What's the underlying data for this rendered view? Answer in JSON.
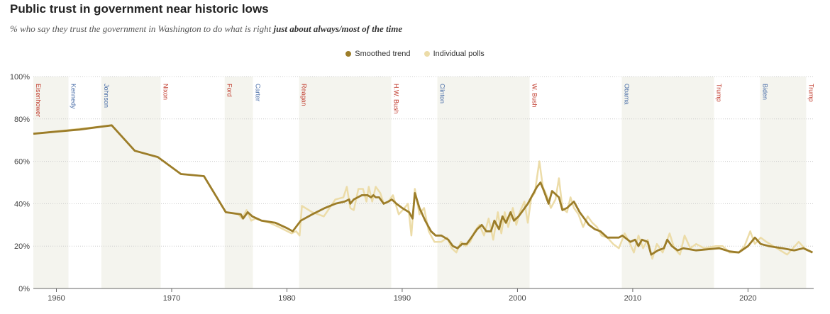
{
  "header": {
    "title": "Public trust in government near historic lows",
    "subtitle_main": "% who say they trust the government in Washington to do what is right ",
    "subtitle_emph": "just about always/most of the time"
  },
  "legend": {
    "smoothed_label": "Smoothed trend",
    "polls_label": "Individual polls"
  },
  "colors": {
    "smoothed": "#9c7d29",
    "polls": "#ecdca8",
    "shade": "#f4f4ee",
    "republican": "#c0392b",
    "democrat": "#4a6ea8",
    "axis": "#666666",
    "grid": "#cccccc"
  },
  "chart_data": {
    "type": "line",
    "title": "Public trust in government near historic lows",
    "xlabel": "",
    "ylabel": "",
    "xlim": [
      1958,
      2025.7
    ],
    "ylim": [
      0,
      100
    ],
    "x_ticks": [
      1960,
      1970,
      1980,
      1990,
      2000,
      2010,
      2020
    ],
    "y_ticks": [
      0,
      20,
      40,
      60,
      80,
      100
    ],
    "y_tick_labels": [
      "0%",
      "20%",
      "40%",
      "60%",
      "80%",
      "100%"
    ],
    "presidents": [
      {
        "name": "Eisenhower",
        "start": 1958,
        "end": 1961.05,
        "party": "R",
        "shaded": true
      },
      {
        "name": "Kennedy",
        "start": 1961.05,
        "end": 1963.9,
        "party": "D",
        "shaded": false
      },
      {
        "name": "Johnson",
        "start": 1963.9,
        "end": 1969.05,
        "party": "D",
        "shaded": true
      },
      {
        "name": "Nixon",
        "start": 1969.05,
        "end": 1974.6,
        "party": "R",
        "shaded": false
      },
      {
        "name": "Ford",
        "start": 1974.6,
        "end": 1977.05,
        "party": "R",
        "shaded": true
      },
      {
        "name": "Carter",
        "start": 1977.05,
        "end": 1981.05,
        "party": "D",
        "shaded": false
      },
      {
        "name": "Reagan",
        "start": 1981.05,
        "end": 1989.05,
        "party": "R",
        "shaded": true
      },
      {
        "name": "H.W. Bush",
        "start": 1989.05,
        "end": 1993.05,
        "party": "R",
        "shaded": false
      },
      {
        "name": "Clinton",
        "start": 1993.05,
        "end": 2001.05,
        "party": "D",
        "shaded": true
      },
      {
        "name": "W. Bush",
        "start": 2001.05,
        "end": 2009.05,
        "party": "R",
        "shaded": false
      },
      {
        "name": "Obama",
        "start": 2009.05,
        "end": 2017.05,
        "party": "D",
        "shaded": true
      },
      {
        "name": "Trump",
        "start": 2017.05,
        "end": 2021.05,
        "party": "R",
        "shaded": false
      },
      {
        "name": "Biden",
        "start": 2021.05,
        "end": 2025.05,
        "party": "D",
        "shaded": true
      },
      {
        "name": "Trump",
        "start": 2025.05,
        "end": 2025.7,
        "party": "R",
        "shaded": false
      }
    ],
    "series": [
      {
        "name": "Individual polls",
        "points": [
          [
            1958,
            73
          ],
          [
            1964.8,
            77
          ],
          [
            1966.8,
            65
          ],
          [
            1968.8,
            62
          ],
          [
            1970.8,
            54
          ],
          [
            1972.8,
            53
          ],
          [
            1974.7,
            36
          ],
          [
            1975.8,
            35
          ],
          [
            1976.1,
            33
          ],
          [
            1976.5,
            37
          ],
          [
            1976.9,
            32
          ],
          [
            1977.3,
            33
          ],
          [
            1977.8,
            32
          ],
          [
            1978.5,
            31
          ],
          [
            1979.3,
            29
          ],
          [
            1980.4,
            26
          ],
          [
            1980.8,
            27
          ],
          [
            1981.1,
            25
          ],
          [
            1981.3,
            39
          ],
          [
            1982.2,
            36
          ],
          [
            1983.2,
            34
          ],
          [
            1984.2,
            42
          ],
          [
            1984.9,
            43
          ],
          [
            1985.2,
            48
          ],
          [
            1985.5,
            38
          ],
          [
            1985.8,
            37
          ],
          [
            1986.2,
            47
          ],
          [
            1986.6,
            47
          ],
          [
            1986.9,
            41
          ],
          [
            1987.1,
            48
          ],
          [
            1987.4,
            41
          ],
          [
            1987.7,
            48
          ],
          [
            1988.1,
            45
          ],
          [
            1988.4,
            40
          ],
          [
            1988.8,
            41
          ],
          [
            1989.2,
            44
          ],
          [
            1989.7,
            35
          ],
          [
            1990.2,
            38
          ],
          [
            1990.5,
            40
          ],
          [
            1990.8,
            25
          ],
          [
            1991.1,
            47
          ],
          [
            1991.5,
            35
          ],
          [
            1991.9,
            38
          ],
          [
            1992.3,
            27
          ],
          [
            1992.8,
            22
          ],
          [
            1993.4,
            22
          ],
          [
            1993.9,
            24
          ],
          [
            1994.3,
            19
          ],
          [
            1994.7,
            17
          ],
          [
            1995.1,
            22
          ],
          [
            1995.5,
            20
          ],
          [
            1995.9,
            22
          ],
          [
            1996.3,
            27
          ],
          [
            1996.7,
            30
          ],
          [
            1997.1,
            25
          ],
          [
            1997.5,
            33
          ],
          [
            1997.9,
            23
          ],
          [
            1998.3,
            36
          ],
          [
            1998.6,
            26
          ],
          [
            1998.9,
            36
          ],
          [
            1999.2,
            29
          ],
          [
            1999.6,
            38
          ],
          [
            1999.9,
            30
          ],
          [
            2000.2,
            36
          ],
          [
            2000.6,
            41
          ],
          [
            2000.9,
            31
          ],
          [
            2001.2,
            43
          ],
          [
            2001.5,
            45
          ],
          [
            2001.9,
            60
          ],
          [
            2002.2,
            48
          ],
          [
            2002.6,
            43
          ],
          [
            2002.9,
            38
          ],
          [
            2003.3,
            42
          ],
          [
            2003.6,
            52
          ],
          [
            2003.9,
            38
          ],
          [
            2004.3,
            36
          ],
          [
            2004.6,
            43
          ],
          [
            2004.9,
            38
          ],
          [
            2005.3,
            35
          ],
          [
            2005.7,
            29
          ],
          [
            2006.1,
            34
          ],
          [
            2006.5,
            31
          ],
          [
            2006.9,
            29
          ],
          [
            2007.3,
            25
          ],
          [
            2007.8,
            24
          ],
          [
            2008.3,
            21
          ],
          [
            2008.8,
            19
          ],
          [
            2009.3,
            26
          ],
          [
            2009.7,
            22
          ],
          [
            2010.1,
            17
          ],
          [
            2010.5,
            25
          ],
          [
            2010.9,
            19
          ],
          [
            2011.3,
            23
          ],
          [
            2011.7,
            14
          ],
          [
            2012.1,
            21
          ],
          [
            2012.6,
            17
          ],
          [
            2013.2,
            26
          ],
          [
            2013.6,
            19
          ],
          [
            2014.1,
            16
          ],
          [
            2014.5,
            25
          ],
          [
            2015.0,
            19
          ],
          [
            2015.5,
            21
          ],
          [
            2016.2,
            19
          ],
          [
            2017.2,
            20
          ],
          [
            2017.8,
            20
          ],
          [
            2018.4,
            17
          ],
          [
            2019.2,
            17
          ],
          [
            2019.7,
            20
          ],
          [
            2020.2,
            27
          ],
          [
            2020.6,
            21
          ],
          [
            2021.1,
            24
          ],
          [
            2021.6,
            22
          ],
          [
            2022.2,
            20
          ],
          [
            2022.8,
            18
          ],
          [
            2023.4,
            16
          ],
          [
            2023.9,
            19
          ],
          [
            2024.4,
            22
          ],
          [
            2024.9,
            19
          ],
          [
            2025.6,
            17
          ]
        ]
      },
      {
        "name": "Smoothed trend",
        "points": [
          [
            1958,
            73
          ],
          [
            1960,
            74
          ],
          [
            1962,
            75
          ],
          [
            1964.8,
            77
          ],
          [
            1966.8,
            65
          ],
          [
            1968.8,
            62
          ],
          [
            1970.8,
            54
          ],
          [
            1972.8,
            53
          ],
          [
            1974.7,
            36
          ],
          [
            1976,
            35
          ],
          [
            1976.2,
            33
          ],
          [
            1976.6,
            36
          ],
          [
            1977,
            34
          ],
          [
            1977.8,
            32
          ],
          [
            1979,
            31
          ],
          [
            1980,
            28.5
          ],
          [
            1980.5,
            27
          ],
          [
            1981.2,
            32
          ],
          [
            1982.2,
            35
          ],
          [
            1983.3,
            38
          ],
          [
            1984.2,
            40
          ],
          [
            1985.0,
            41
          ],
          [
            1985.4,
            42
          ],
          [
            1985.5,
            40
          ],
          [
            1985.8,
            42
          ],
          [
            1986.5,
            44
          ],
          [
            1987.0,
            44
          ],
          [
            1987.3,
            43
          ],
          [
            1987.5,
            44
          ],
          [
            1987.7,
            43
          ],
          [
            1988,
            43
          ],
          [
            1988.4,
            40
          ],
          [
            1988.8,
            41
          ],
          [
            1989.1,
            42
          ],
          [
            1989.5,
            40
          ],
          [
            1990,
            38
          ],
          [
            1990.6,
            36
          ],
          [
            1990.9,
            33
          ],
          [
            1991.1,
            45
          ],
          [
            1991.5,
            38
          ],
          [
            1992.0,
            32
          ],
          [
            1992.5,
            27
          ],
          [
            1992.9,
            25
          ],
          [
            1993.4,
            25
          ],
          [
            1994.0,
            23
          ],
          [
            1994.4,
            20
          ],
          [
            1994.8,
            19
          ],
          [
            1995.2,
            21
          ],
          [
            1995.6,
            21
          ],
          [
            1996.0,
            24
          ],
          [
            1996.5,
            28
          ],
          [
            1996.9,
            30
          ],
          [
            1997.3,
            27
          ],
          [
            1997.7,
            27
          ],
          [
            1998.0,
            32
          ],
          [
            1998.4,
            28
          ],
          [
            1998.7,
            34
          ],
          [
            1999.0,
            31
          ],
          [
            1999.4,
            36
          ],
          [
            1999.7,
            32
          ],
          [
            2000.1,
            34
          ],
          [
            2000.5,
            37
          ],
          [
            2000.9,
            40
          ],
          [
            2001.3,
            44
          ],
          [
            2001.7,
            48
          ],
          [
            2002.0,
            50
          ],
          [
            2002.3,
            46
          ],
          [
            2002.7,
            40
          ],
          [
            2003.0,
            46
          ],
          [
            2003.6,
            43
          ],
          [
            2003.9,
            37
          ],
          [
            2004.3,
            38
          ],
          [
            2004.9,
            41
          ],
          [
            2005.4,
            36
          ],
          [
            2005.8,
            33
          ],
          [
            2006.2,
            30
          ],
          [
            2006.7,
            28
          ],
          [
            2007.2,
            27
          ],
          [
            2007.8,
            24
          ],
          [
            2008.8,
            24
          ],
          [
            2009.1,
            25
          ],
          [
            2009.8,
            22
          ],
          [
            2010.2,
            23
          ],
          [
            2010.5,
            20
          ],
          [
            2010.8,
            23
          ],
          [
            2011.3,
            22
          ],
          [
            2011.6,
            16
          ],
          [
            2012.2,
            18
          ],
          [
            2012.7,
            19
          ],
          [
            2013.0,
            23
          ],
          [
            2013.4,
            20
          ],
          [
            2013.9,
            18
          ],
          [
            2014.4,
            19
          ],
          [
            2015.5,
            18
          ],
          [
            2016.5,
            18.5
          ],
          [
            2017.5,
            19
          ],
          [
            2018.4,
            17.5
          ],
          [
            2019.2,
            17
          ],
          [
            2020.0,
            20
          ],
          [
            2020.6,
            24
          ],
          [
            2021.1,
            21
          ],
          [
            2021.8,
            20
          ],
          [
            2023.0,
            19
          ],
          [
            2024.0,
            18
          ],
          [
            2024.8,
            19
          ],
          [
            2025.6,
            17
          ]
        ]
      }
    ]
  }
}
